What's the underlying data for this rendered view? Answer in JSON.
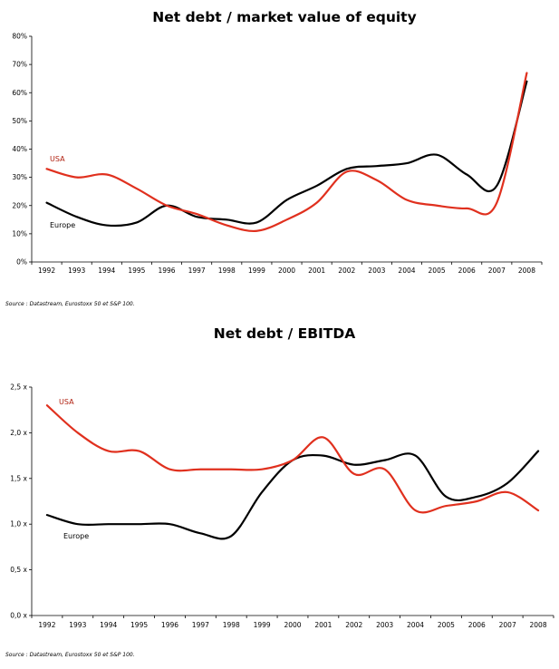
{
  "chart_data": [
    {
      "type": "line",
      "title": "Net debt / market value of equity",
      "x": [
        "1992",
        "1993",
        "1994",
        "1995",
        "1996",
        "1997",
        "1998",
        "1999",
        "2000",
        "2001",
        "2002",
        "2003",
        "2004",
        "2005",
        "2006",
        "2007",
        "2008"
      ],
      "yticks": [
        "0%",
        "10%",
        "20%",
        "30%",
        "40%",
        "50%",
        "60%",
        "70%",
        "80%"
      ],
      "ylim": [
        0,
        80
      ],
      "series": [
        {
          "name": "USA",
          "color": "#e0301e",
          "values": [
            33,
            30,
            31,
            26,
            20,
            17,
            13,
            11,
            15,
            21,
            32,
            29,
            22,
            20,
            19,
            21,
            67
          ]
        },
        {
          "name": "Europe",
          "color": "#000000",
          "values": [
            21,
            16,
            13,
            14,
            20,
            16,
            15,
            14,
            22,
            27,
            33,
            34,
            35,
            38,
            31,
            27,
            64
          ]
        }
      ],
      "source": "Source : Datastream, Eurostoxx 50 et S&P 100."
    },
    {
      "type": "line",
      "title": "Net debt / EBITDA",
      "x": [
        "1992",
        "1993",
        "1994",
        "1995",
        "1996",
        "1997",
        "1998",
        "1999",
        "2000",
        "2001",
        "2002",
        "2003",
        "2004",
        "2005",
        "2006",
        "2007",
        "2008"
      ],
      "yticks": [
        "0,0 x",
        "0,5 x",
        "1,0 x",
        "1,5 x",
        "2,0 x",
        "2,5 x"
      ],
      "ylim": [
        0,
        2.5
      ],
      "series": [
        {
          "name": "USA",
          "color": "#e0301e",
          "values": [
            2.3,
            2.0,
            1.8,
            1.8,
            1.6,
            1.6,
            1.6,
            1.6,
            1.7,
            1.95,
            1.55,
            1.6,
            1.15,
            1.2,
            1.25,
            1.35,
            1.15
          ]
        },
        {
          "name": "Europe",
          "color": "#000000",
          "values": [
            1.1,
            1.0,
            1.0,
            1.0,
            1.0,
            0.9,
            0.87,
            1.35,
            1.7,
            1.75,
            1.65,
            1.7,
            1.75,
            1.3,
            1.3,
            1.45,
            1.8
          ]
        }
      ],
      "source": "Source : Datastream, Eurostoxx 50 et S&P 100."
    }
  ]
}
